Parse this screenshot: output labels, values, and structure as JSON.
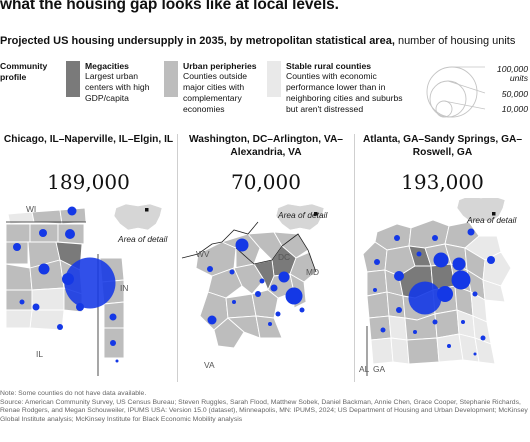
{
  "headline": "what the housing gap looks like at local levels.",
  "subtitle": {
    "bold": "Projected US housing undersupply in 2035, by metropolitan statistical area,",
    "rest": " number of housing units"
  },
  "legend": {
    "profile_label": "Community profile",
    "categories": [
      {
        "title": "Megacities",
        "desc": "Largest urban centers with high GDP/capita",
        "color": "#7a7a7a"
      },
      {
        "title": "Urban peripheries",
        "desc": "Counties outside major cities with complementary economies",
        "color": "#bdbdbd"
      },
      {
        "title": "Stable rural counties",
        "desc": "Counties with economic performance lower than in neighboring cities and suburbs but aren't distressed",
        "color": "#e9e9e9"
      }
    ],
    "size_labels": [
      "100,000",
      "units",
      "50,000",
      "10,000"
    ],
    "dot_color": "#1438e6"
  },
  "panels": [
    {
      "title": "Chicago, IL–Naperville, IL–Elgin, IL",
      "value": "189,000",
      "state_labels": [
        "WI",
        "IN",
        "IL"
      ],
      "detail_label": "Area of detail"
    },
    {
      "title": "Washington, DC–Arlington, VA–Alexandria, VA",
      "value": "70,000",
      "state_labels": [
        "WV",
        "DC",
        "MD",
        "VA"
      ],
      "detail_label": "Area of detail"
    },
    {
      "title": "Atlanta, GA–Sandy Springs, GA–Roswell, GA",
      "value": "193,000",
      "state_labels": [
        "AL",
        "GA"
      ],
      "detail_label": "Area of detail"
    }
  ],
  "footnote": {
    "note": "Note: Some counties do not have data available.",
    "source": "Source: American Community Survey, US Census Bureau; Steven Ruggles, Sarah Flood, Matthew Sobek, Daniel Backman, Annie Chen, Grace Cooper, Stephanie Richards, Renae Rodgers, and Megan Schouweiler, IPUMS USA: Version 15.0 (dataset), Minneapolis, MN: IPUMS, 2024; US Department of Housing and Urban Development; McKinsey Global Institute analysis; McKinsey Institute for Black Economic Mobility analysis"
  }
}
